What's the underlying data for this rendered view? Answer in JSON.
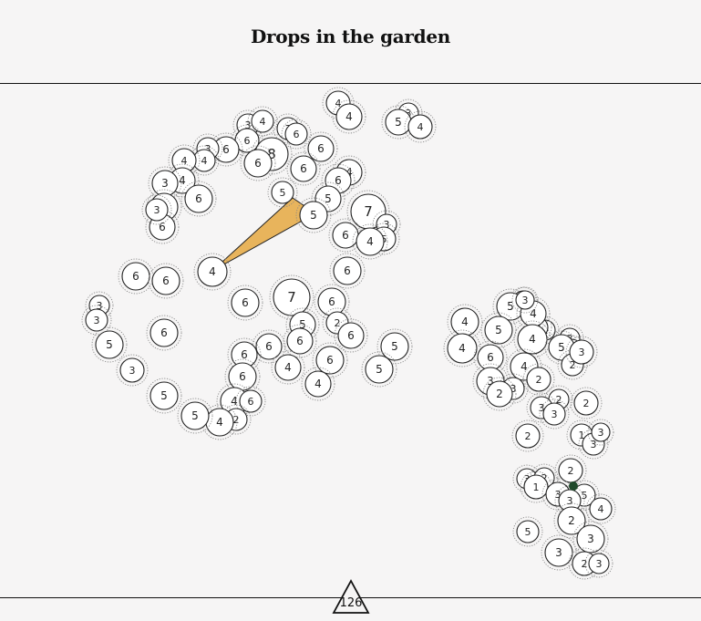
{
  "title": "Drops in the garden",
  "page_number": "126",
  "colors": {
    "background": "#f6f5f5",
    "rule": "#111111",
    "circle_fill": "#ffffff",
    "circle_stroke": "#222222",
    "halo": "#888888",
    "wedge_fill": "#e8b45c",
    "marker": "#1f4a2b"
  },
  "circles": [
    {
      "n": "4"
    },
    {
      "n": "4"
    },
    {
      "n": "3"
    },
    {
      "n": "5"
    },
    {
      "n": "4"
    },
    {
      "n": "3"
    },
    {
      "n": "4"
    },
    {
      "n": "3"
    },
    {
      "n": "6"
    },
    {
      "n": "6"
    },
    {
      "n": "6"
    },
    {
      "n": "8"
    },
    {
      "n": "6"
    },
    {
      "n": "3"
    },
    {
      "n": "6"
    },
    {
      "n": "4"
    },
    {
      "n": "4"
    },
    {
      "n": "4"
    },
    {
      "n": "6"
    },
    {
      "n": "6"
    },
    {
      "n": "5"
    },
    {
      "n": "4"
    },
    {
      "n": "3"
    },
    {
      "n": "6"
    },
    {
      "n": "4"
    },
    {
      "n": "6"
    },
    {
      "n": "3"
    },
    {
      "n": "5"
    },
    {
      "n": "5"
    },
    {
      "n": "7"
    },
    {
      "n": "3"
    },
    {
      "n": "5"
    },
    {
      "n": "6"
    },
    {
      "n": "4"
    },
    {
      "n": "6"
    },
    {
      "n": "4"
    },
    {
      "n": "6"
    },
    {
      "n": "6"
    },
    {
      "n": "6"
    },
    {
      "n": "7"
    },
    {
      "n": "6"
    },
    {
      "n": "5"
    },
    {
      "n": "2"
    },
    {
      "n": "6"
    },
    {
      "n": "3"
    },
    {
      "n": "3"
    },
    {
      "n": "6"
    },
    {
      "n": "5"
    },
    {
      "n": "3"
    },
    {
      "n": "5"
    },
    {
      "n": "6"
    },
    {
      "n": "6"
    },
    {
      "n": "6"
    },
    {
      "n": "6"
    },
    {
      "n": "6"
    },
    {
      "n": "4"
    },
    {
      "n": "4"
    },
    {
      "n": "5"
    },
    {
      "n": "5"
    },
    {
      "n": "4"
    },
    {
      "n": "6"
    },
    {
      "n": "2"
    },
    {
      "n": "4"
    },
    {
      "n": "5"
    },
    {
      "n": "4"
    },
    {
      "n": "4"
    },
    {
      "n": "5"
    },
    {
      "n": "5"
    },
    {
      "n": "2"
    },
    {
      "n": "2"
    },
    {
      "n": "4"
    },
    {
      "n": "3"
    },
    {
      "n": "4"
    },
    {
      "n": "4"
    },
    {
      "n": "3"
    },
    {
      "n": "2"
    },
    {
      "n": "6"
    },
    {
      "n": "5"
    },
    {
      "n": "2"
    },
    {
      "n": "3"
    },
    {
      "n": "4"
    },
    {
      "n": "2"
    },
    {
      "n": "3"
    },
    {
      "n": "3"
    },
    {
      "n": "2"
    },
    {
      "n": "2"
    },
    {
      "n": "2"
    },
    {
      "n": "3"
    },
    {
      "n": "3"
    },
    {
      "n": "2"
    },
    {
      "n": "1"
    },
    {
      "n": "3"
    },
    {
      "n": "3"
    },
    {
      "n": "2"
    },
    {
      "n": "3"
    },
    {
      "n": "2"
    },
    {
      "n": "1"
    },
    {
      "n": "3"
    },
    {
      "n": "5"
    },
    {
      "n": "3"
    },
    {
      "n": "4"
    },
    {
      "n": "5"
    },
    {
      "n": "2"
    },
    {
      "n": "3"
    },
    {
      "n": "3"
    },
    {
      "n": "2"
    },
    {
      "n": "3"
    }
  ]
}
